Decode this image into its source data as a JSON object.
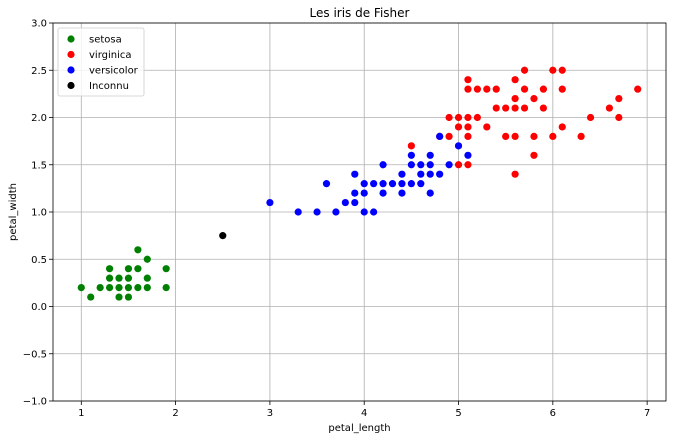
{
  "chart_data": {
    "type": "scatter",
    "title": "Les iris de Fisher",
    "xlabel": "petal_length",
    "ylabel": "petal_width",
    "xlim": [
      0.7,
      7.2
    ],
    "ylim": [
      -1.0,
      3.0
    ],
    "xticks": [
      1,
      2,
      3,
      4,
      5,
      6,
      7
    ],
    "xtick_labels": [
      "1",
      "2",
      "3",
      "4",
      "5",
      "6",
      "7"
    ],
    "yticks": [
      -1.0,
      -0.5,
      0.0,
      0.5,
      1.0,
      1.5,
      2.0,
      2.5,
      3.0
    ],
    "ytick_labels": [
      "−1.0",
      "−0.5",
      "0.0",
      "0.5",
      "1.0",
      "1.5",
      "2.0",
      "2.5",
      "3.0"
    ],
    "grid": true,
    "legend_position": "top-left",
    "series": [
      {
        "name": "setosa",
        "color": "#008000",
        "points": [
          [
            1.0,
            0.2
          ],
          [
            1.1,
            0.1
          ],
          [
            1.2,
            0.2
          ],
          [
            1.3,
            0.2
          ],
          [
            1.3,
            0.3
          ],
          [
            1.3,
            0.4
          ],
          [
            1.4,
            0.1
          ],
          [
            1.4,
            0.2
          ],
          [
            1.4,
            0.3
          ],
          [
            1.5,
            0.1
          ],
          [
            1.5,
            0.2
          ],
          [
            1.5,
            0.3
          ],
          [
            1.5,
            0.4
          ],
          [
            1.6,
            0.2
          ],
          [
            1.6,
            0.4
          ],
          [
            1.6,
            0.6
          ],
          [
            1.7,
            0.2
          ],
          [
            1.7,
            0.3
          ],
          [
            1.7,
            0.5
          ],
          [
            1.9,
            0.2
          ],
          [
            1.9,
            0.4
          ]
        ]
      },
      {
        "name": "virginica",
        "color": "#ff0000",
        "points": [
          [
            4.5,
            1.7
          ],
          [
            4.8,
            1.8
          ],
          [
            4.9,
            1.8
          ],
          [
            4.9,
            2.0
          ],
          [
            5.0,
            1.5
          ],
          [
            5.0,
            1.9
          ],
          [
            5.0,
            2.0
          ],
          [
            5.1,
            1.5
          ],
          [
            5.1,
            1.8
          ],
          [
            5.1,
            1.9
          ],
          [
            5.1,
            2.0
          ],
          [
            5.1,
            2.3
          ],
          [
            5.1,
            2.4
          ],
          [
            5.2,
            2.0
          ],
          [
            5.2,
            2.3
          ],
          [
            5.3,
            1.9
          ],
          [
            5.3,
            2.3
          ],
          [
            5.4,
            2.1
          ],
          [
            5.4,
            2.3
          ],
          [
            5.5,
            1.8
          ],
          [
            5.5,
            2.1
          ],
          [
            5.6,
            1.4
          ],
          [
            5.6,
            1.8
          ],
          [
            5.6,
            2.1
          ],
          [
            5.6,
            2.2
          ],
          [
            5.6,
            2.4
          ],
          [
            5.7,
            2.1
          ],
          [
            5.7,
            2.3
          ],
          [
            5.7,
            2.5
          ],
          [
            5.8,
            1.6
          ],
          [
            5.8,
            1.8
          ],
          [
            5.8,
            2.2
          ],
          [
            5.9,
            2.1
          ],
          [
            5.9,
            2.3
          ],
          [
            6.0,
            1.8
          ],
          [
            6.0,
            2.5
          ],
          [
            6.1,
            1.9
          ],
          [
            6.1,
            2.3
          ],
          [
            6.1,
            2.5
          ],
          [
            6.3,
            1.8
          ],
          [
            6.4,
            2.0
          ],
          [
            6.6,
            2.1
          ],
          [
            6.7,
            2.0
          ],
          [
            6.7,
            2.2
          ],
          [
            6.9,
            2.3
          ]
        ]
      },
      {
        "name": "versicolor",
        "color": "#0000ff",
        "points": [
          [
            3.0,
            1.1
          ],
          [
            3.3,
            1.0
          ],
          [
            3.5,
            1.0
          ],
          [
            3.6,
            1.3
          ],
          [
            3.7,
            1.0
          ],
          [
            3.8,
            1.1
          ],
          [
            3.9,
            1.1
          ],
          [
            3.9,
            1.2
          ],
          [
            3.9,
            1.4
          ],
          [
            4.0,
            1.0
          ],
          [
            4.0,
            1.2
          ],
          [
            4.0,
            1.3
          ],
          [
            4.1,
            1.0
          ],
          [
            4.1,
            1.3
          ],
          [
            4.2,
            1.2
          ],
          [
            4.2,
            1.3
          ],
          [
            4.2,
            1.5
          ],
          [
            4.3,
            1.3
          ],
          [
            4.4,
            1.2
          ],
          [
            4.4,
            1.3
          ],
          [
            4.4,
            1.4
          ],
          [
            4.5,
            1.3
          ],
          [
            4.5,
            1.5
          ],
          [
            4.5,
            1.6
          ],
          [
            4.6,
            1.3
          ],
          [
            4.6,
            1.4
          ],
          [
            4.6,
            1.5
          ],
          [
            4.7,
            1.2
          ],
          [
            4.7,
            1.4
          ],
          [
            4.7,
            1.5
          ],
          [
            4.7,
            1.6
          ],
          [
            4.8,
            1.4
          ],
          [
            4.8,
            1.8
          ],
          [
            4.9,
            1.5
          ],
          [
            5.0,
            1.7
          ],
          [
            5.1,
            1.6
          ]
        ]
      },
      {
        "name": "Inconnu",
        "color": "#000000",
        "points": [
          [
            2.5,
            0.75
          ]
        ]
      }
    ]
  }
}
